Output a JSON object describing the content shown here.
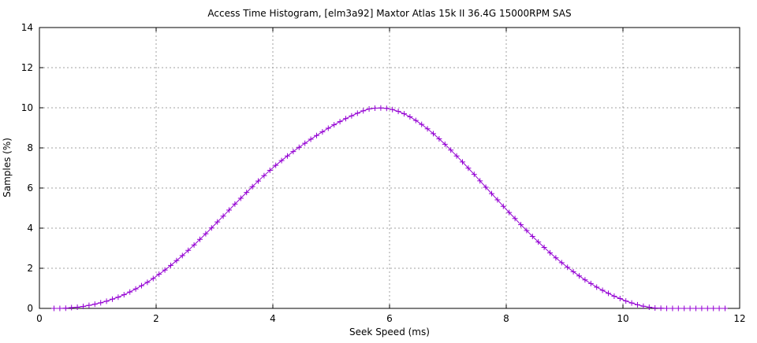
{
  "chart_data": {
    "type": "line",
    "title": "Access Time Histogram, [elm3a92] Maxtor Atlas 15k II 36.4G 15000RPM SAS",
    "xlabel": "Seek Speed (ms)",
    "ylabel": "Samples (%)",
    "xlim": [
      0,
      12
    ],
    "ylim": [
      0,
      14
    ],
    "xticks": [
      0,
      2,
      4,
      6,
      8,
      10,
      12
    ],
    "yticks": [
      0,
      2,
      4,
      6,
      8,
      10,
      12,
      14
    ],
    "grid": true,
    "marker": "plus",
    "series": [
      {
        "color": "#9400d3",
        "x": [
          0.25,
          0.35,
          0.45,
          0.55,
          0.65,
          0.75,
          0.85,
          0.95,
          1.05,
          1.15,
          1.25,
          1.35,
          1.45,
          1.55,
          1.65,
          1.75,
          1.85,
          1.95,
          2.05,
          2.15,
          2.25,
          2.35,
          2.45,
          2.55,
          2.65,
          2.75,
          2.85,
          2.95,
          3.05,
          3.15,
          3.25,
          3.35,
          3.45,
          3.55,
          3.65,
          3.75,
          3.85,
          3.95,
          4.05,
          4.15,
          4.25,
          4.35,
          4.45,
          4.55,
          4.65,
          4.75,
          4.85,
          4.95,
          5.05,
          5.15,
          5.25,
          5.35,
          5.45,
          5.55,
          5.65,
          5.75,
          5.85,
          5.95,
          6.05,
          6.15,
          6.25,
          6.35,
          6.45,
          6.55,
          6.65,
          6.75,
          6.85,
          6.95,
          7.05,
          7.15,
          7.25,
          7.35,
          7.45,
          7.55,
          7.65,
          7.75,
          7.85,
          7.95,
          8.05,
          8.15,
          8.25,
          8.35,
          8.45,
          8.55,
          8.65,
          8.75,
          8.85,
          8.95,
          9.05,
          9.15,
          9.25,
          9.35,
          9.45,
          9.55,
          9.65,
          9.75,
          9.85,
          9.95,
          10.05,
          10.15,
          10.25,
          10.35,
          10.45,
          10.55,
          10.65,
          10.75,
          10.85,
          10.95,
          11.05,
          11.15,
          11.25,
          11.35,
          11.45,
          11.55,
          11.65,
          11.75
        ],
        "y": [
          0.0,
          0.0,
          0.01,
          0.04,
          0.06,
          0.1,
          0.15,
          0.21,
          0.28,
          0.36,
          0.46,
          0.56,
          0.68,
          0.82,
          0.97,
          1.13,
          1.3,
          1.49,
          1.7,
          1.91,
          2.14,
          2.38,
          2.63,
          2.89,
          3.16,
          3.44,
          3.72,
          4.01,
          4.31,
          4.6,
          4.9,
          5.2,
          5.49,
          5.78,
          6.07,
          6.35,
          6.62,
          6.88,
          7.13,
          7.37,
          7.6,
          7.82,
          8.03,
          8.23,
          8.43,
          8.62,
          8.8,
          8.98,
          9.15,
          9.31,
          9.46,
          9.6,
          9.73,
          9.85,
          9.94,
          9.98,
          9.99,
          9.97,
          9.91,
          9.82,
          9.7,
          9.55,
          9.37,
          9.17,
          8.95,
          8.71,
          8.45,
          8.18,
          7.89,
          7.6,
          7.3,
          6.99,
          6.68,
          6.36,
          6.04,
          5.72,
          5.41,
          5.09,
          4.78,
          4.48,
          4.17,
          3.88,
          3.59,
          3.31,
          3.04,
          2.77,
          2.52,
          2.28,
          2.05,
          1.83,
          1.62,
          1.42,
          1.24,
          1.06,
          0.9,
          0.75,
          0.61,
          0.49,
          0.37,
          0.27,
          0.18,
          0.11,
          0.06,
          0.02,
          0.01,
          0.0,
          0.0,
          0.0,
          0.0,
          0.0,
          0.0,
          0.0,
          0.0,
          0.0,
          0.0,
          0.0
        ]
      }
    ]
  }
}
